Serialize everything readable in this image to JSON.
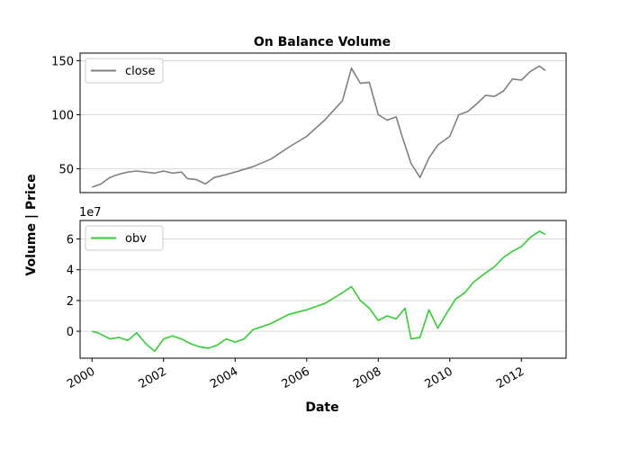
{
  "chart_data": [
    {
      "type": "line",
      "title": "On Balance Volume",
      "ylim": [
        28,
        157
      ],
      "xlim": [
        "1999-09-01",
        "2013-04-01"
      ],
      "y_ticks": [
        50,
        100,
        150
      ],
      "grid": "horizontal",
      "legend": "upper-left",
      "series": [
        {
          "name": "close",
          "color": "#808080",
          "points": [
            [
              "2000-01-01",
              33
            ],
            [
              "2000-04-01",
              36
            ],
            [
              "2000-07-01",
              42
            ],
            [
              "2000-10-01",
              45
            ],
            [
              "2001-01-01",
              47
            ],
            [
              "2001-04-01",
              48
            ],
            [
              "2001-07-01",
              47
            ],
            [
              "2001-10-01",
              46
            ],
            [
              "2002-01-01",
              48
            ],
            [
              "2002-04-01",
              46
            ],
            [
              "2002-07-01",
              47
            ],
            [
              "2002-09-01",
              41
            ],
            [
              "2002-12-01",
              40
            ],
            [
              "2003-03-01",
              36
            ],
            [
              "2003-06-01",
              42
            ],
            [
              "2003-09-01",
              44
            ],
            [
              "2004-01-01",
              47
            ],
            [
              "2004-07-01",
              52
            ],
            [
              "2005-01-01",
              59
            ],
            [
              "2005-07-01",
              70
            ],
            [
              "2006-01-01",
              80
            ],
            [
              "2006-07-01",
              95
            ],
            [
              "2007-01-01",
              113
            ],
            [
              "2007-04-01",
              143
            ],
            [
              "2007-07-01",
              129
            ],
            [
              "2007-10-01",
              130
            ],
            [
              "2008-01-01",
              100
            ],
            [
              "2008-04-01",
              95
            ],
            [
              "2008-07-01",
              98
            ],
            [
              "2008-09-01",
              80
            ],
            [
              "2008-12-01",
              55
            ],
            [
              "2009-03-01",
              42
            ],
            [
              "2009-06-01",
              60
            ],
            [
              "2009-09-01",
              72
            ],
            [
              "2010-01-01",
              80
            ],
            [
              "2010-04-01",
              100
            ],
            [
              "2010-07-01",
              103
            ],
            [
              "2010-10-01",
              110
            ],
            [
              "2011-01-01",
              118
            ],
            [
              "2011-04-01",
              117
            ],
            [
              "2011-07-01",
              122
            ],
            [
              "2011-10-01",
              133
            ],
            [
              "2012-01-01",
              132
            ],
            [
              "2012-04-01",
              140
            ],
            [
              "2012-07-01",
              145
            ],
            [
              "2012-09-01",
              141
            ]
          ]
        }
      ]
    },
    {
      "type": "line",
      "scale_label": "1e7",
      "xlabel": "Date",
      "ylim": [
        -1.75,
        7.2
      ],
      "xlim": [
        "1999-09-01",
        "2013-04-01"
      ],
      "y_ticks": [
        0,
        2,
        4,
        6
      ],
      "x_ticks": [
        "2000",
        "2002",
        "2004",
        "2006",
        "2008",
        "2010",
        "2012"
      ],
      "grid": "horizontal",
      "legend": "upper-left",
      "series": [
        {
          "name": "obv",
          "color": "#32CD32",
          "points": [
            [
              "2000-01-01",
              0
            ],
            [
              "2000-03-01",
              -0.1
            ],
            [
              "2000-05-01",
              -0.3
            ],
            [
              "2000-07-01",
              -0.5
            ],
            [
              "2000-10-01",
              -0.4
            ],
            [
              "2001-01-01",
              -0.6
            ],
            [
              "2001-04-01",
              -0.1
            ],
            [
              "2001-07-01",
              -0.8
            ],
            [
              "2001-10-01",
              -1.3
            ],
            [
              "2002-01-01",
              -0.5
            ],
            [
              "2002-04-01",
              -0.3
            ],
            [
              "2002-07-01",
              -0.5
            ],
            [
              "2002-10-01",
              -0.8
            ],
            [
              "2003-01-01",
              -1.0
            ],
            [
              "2003-04-01",
              -1.1
            ],
            [
              "2003-07-01",
              -0.9
            ],
            [
              "2003-10-01",
              -0.5
            ],
            [
              "2004-01-01",
              -0.7
            ],
            [
              "2004-04-01",
              -0.5
            ],
            [
              "2004-07-01",
              0.1
            ],
            [
              "2005-01-01",
              0.5
            ],
            [
              "2005-07-01",
              1.1
            ],
            [
              "2006-01-01",
              1.4
            ],
            [
              "2006-07-01",
              1.8
            ],
            [
              "2007-01-01",
              2.5
            ],
            [
              "2007-04-01",
              2.9
            ],
            [
              "2007-07-01",
              2.0
            ],
            [
              "2007-10-01",
              1.5
            ],
            [
              "2008-01-01",
              0.7
            ],
            [
              "2008-04-01",
              1.0
            ],
            [
              "2008-07-01",
              0.8
            ],
            [
              "2008-10-01",
              1.5
            ],
            [
              "2008-12-01",
              -0.5
            ],
            [
              "2009-03-01",
              -0.4
            ],
            [
              "2009-06-01",
              1.4
            ],
            [
              "2009-09-01",
              0.2
            ],
            [
              "2009-12-01",
              1.2
            ],
            [
              "2010-03-01",
              2.1
            ],
            [
              "2010-06-01",
              2.5
            ],
            [
              "2010-09-01",
              3.2
            ],
            [
              "2011-01-01",
              3.8
            ],
            [
              "2011-04-01",
              4.2
            ],
            [
              "2011-07-01",
              4.8
            ],
            [
              "2011-10-01",
              5.2
            ],
            [
              "2012-01-01",
              5.5
            ],
            [
              "2012-04-01",
              6.1
            ],
            [
              "2012-07-01",
              6.5
            ],
            [
              "2012-09-01",
              6.3
            ]
          ]
        }
      ]
    }
  ],
  "shared_ylabel": "Volume | Price"
}
